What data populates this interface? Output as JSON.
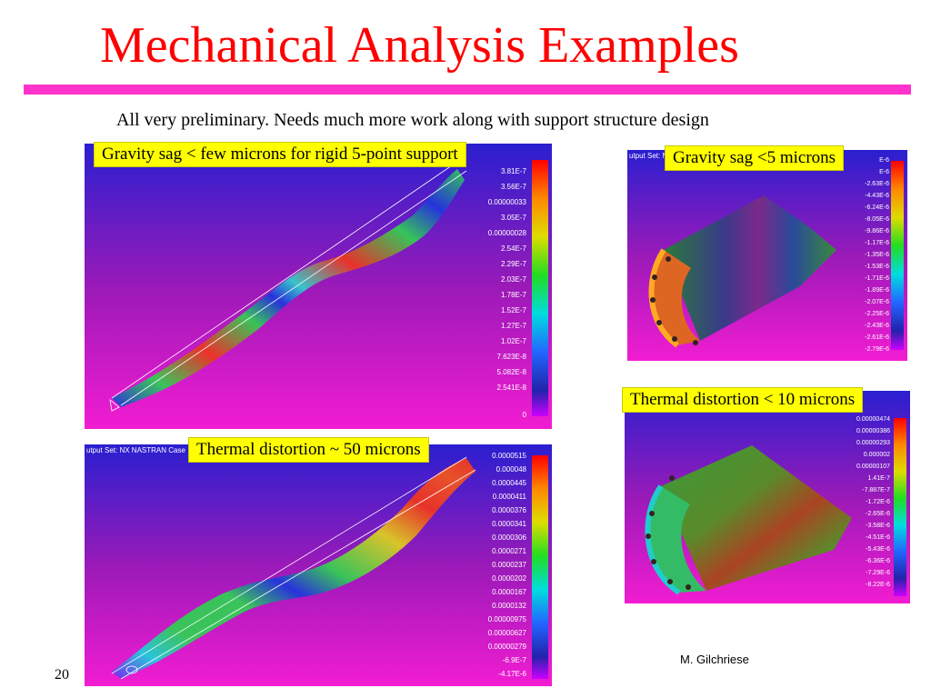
{
  "slide": {
    "title": "Mechanical Analysis Examples",
    "subtitle": "All very preliminary. Needs much more work along with support structure design",
    "author": "M. Gilchriese",
    "page_number": "20"
  },
  "panels": [
    {
      "callout": "Gravity sag < few microns for rigid 5-point support",
      "legend": [
        "3.81E-7",
        "3.56E-7",
        "0.00000033",
        "3.05E-7",
        "0.00000028",
        "2.54E-7",
        "2.29E-7",
        "2.03E-7",
        "1.78E-7",
        "1.52E-7",
        "1.27E-7",
        "1.02E-7",
        "7.623E-8",
        "5.082E-8",
        "2.541E-8",
        "0"
      ]
    },
    {
      "callout": "Thermal distortion ~ 50 microns",
      "header": "utput Set: NX NASTRAN Case",
      "legend": [
        "0.0000515",
        "0.000048",
        "0.0000445",
        "0.0000411",
        "0.0000376",
        "0.0000341",
        "0.0000306",
        "0.0000271",
        "0.0000237",
        "0.0000202",
        "0.0000167",
        "0.0000132",
        "0.00000975",
        "0.00000627",
        "0.00000279",
        "-6.9E-7",
        "-4.17E-6"
      ]
    },
    {
      "callout": "Gravity sag <5 microns",
      "header": "utput Set: NX N",
      "legend": [
        "E-6",
        "E-6",
        "-2.63E-6",
        "-4.43E-6",
        "-6.24E-6",
        "-8.05E-6",
        "-9.86E-6",
        "-1.17E-6",
        "-1.35E-6",
        "-1.53E-6",
        "-1.71E-6",
        "-1.89E-6",
        "-2.07E-6",
        "-2.25E-6",
        "-2.43E-6",
        "-2.61E-6",
        "-2.79E-6"
      ]
    },
    {
      "callout": "Thermal distortion < 10 microns",
      "legend": [
        "0.00000474",
        "0.00000386",
        "0.00000293",
        "0.000002",
        "0.00000107",
        "1.41E-7",
        "-7.887E-7",
        "-1.72E-6",
        "-2.65E-6",
        "-3.58E-6",
        "-4.51E-6",
        "-5.43E-6",
        "-6.36E-6",
        "-7.29E-6",
        "-8.22E-6"
      ]
    }
  ]
}
